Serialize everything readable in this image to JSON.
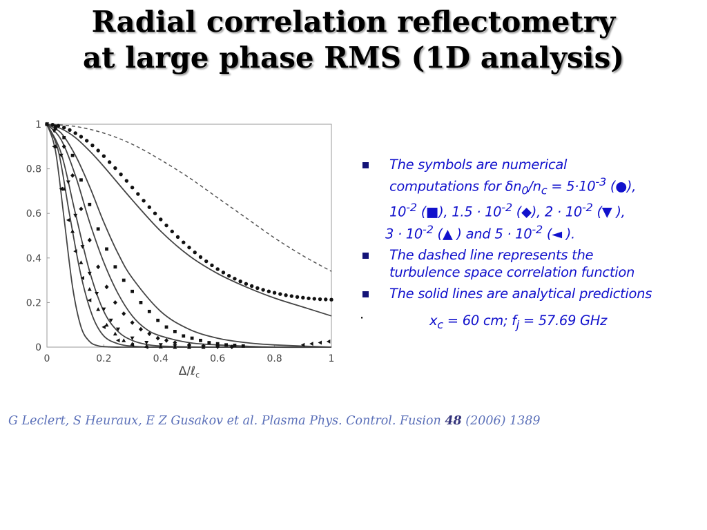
{
  "title": {
    "line1": "Radial correlation reflectometry",
    "line2": "at large phase RMS (1D analysis)"
  },
  "bullets": {
    "b1": {
      "l1": "The symbols are numerical",
      "l2a": "computations for ",
      "delta": "δ",
      "n0": "n",
      "sub0": "0",
      "slash": "/n",
      "subc": "c",
      "eq": " = 5·10",
      "exp3": "-3",
      "s1": " (●),",
      "l3a": "10",
      "e2a": "-2",
      "s2": " (■), 1.5 · 10",
      "e2b": "-2",
      "s3": " (◆), 2 · 10",
      "e2c": "-2",
      "s4": " (▼ ),",
      "l4a": "3 · 10",
      "e2d": "-2",
      "s5": " (▲ ) and 5 · 10",
      "e2e": "-2",
      "s6": " (◄ )."
    },
    "b2": {
      "l1": "The dashed line represents the",
      "l2": "turbulence space correlation function"
    },
    "b3": {
      "l1": "The solid lines are analytical predictions"
    },
    "dot": "·",
    "formula": {
      "x": "x",
      "xsub": "c",
      "mid": " = 60 cm; f",
      "fsub": "j",
      "end": " = 57.69 GHz"
    }
  },
  "citation": {
    "pre": "G Leclert, S Heuraux, E Z Gusakov et al. Plasma Phys. Control. Fusion ",
    "vol": "48",
    "post": " (2006) 1389"
  },
  "chart_data": {
    "type": "line",
    "xlabel": "Δ/ℓc",
    "xlabel_main": "Δ/ℓ",
    "xlabel_sub": "c",
    "xlim": [
      0,
      1
    ],
    "ylim": [
      0,
      1
    ],
    "x_ticks": [
      "0",
      "0.2",
      "0.4",
      "0.6",
      "0.8",
      "1"
    ],
    "y_ticks": [
      "0",
      "0.2",
      "0.4",
      "0.6",
      "0.8",
      "1"
    ],
    "colors": {
      "solid": "#444444",
      "dashed": "#555555",
      "markers": "#111111"
    },
    "dashed_line": {
      "x": [
        0,
        0.1,
        0.2,
        0.3,
        0.4,
        0.5,
        0.6,
        0.7,
        0.8,
        0.9,
        1.0
      ],
      "y": [
        1,
        0.99,
        0.96,
        0.91,
        0.84,
        0.76,
        0.67,
        0.58,
        0.49,
        0.41,
        0.34
      ]
    },
    "solid_lines": [
      {
        "x": [
          0,
          0.05,
          0.1,
          0.15,
          0.2,
          0.3,
          0.4,
          0.5,
          0.6,
          0.7,
          0.8,
          0.9,
          1.0
        ],
        "y": [
          1,
          0.98,
          0.94,
          0.88,
          0.81,
          0.66,
          0.52,
          0.41,
          0.33,
          0.27,
          0.22,
          0.18,
          0.14
        ]
      },
      {
        "x": [
          0,
          0.05,
          0.1,
          0.15,
          0.2,
          0.25,
          0.3,
          0.4,
          0.5,
          0.6,
          0.7,
          0.8,
          1.0
        ],
        "y": [
          1,
          0.96,
          0.86,
          0.72,
          0.56,
          0.42,
          0.31,
          0.16,
          0.08,
          0.04,
          0.02,
          0.01,
          0
        ]
      },
      {
        "x": [
          0,
          0.05,
          0.1,
          0.15,
          0.2,
          0.25,
          0.3,
          0.35,
          0.4,
          0.5,
          0.6,
          0.8,
          1.0
        ],
        "y": [
          1,
          0.93,
          0.77,
          0.56,
          0.38,
          0.24,
          0.14,
          0.08,
          0.05,
          0.02,
          0.01,
          0,
          0
        ]
      },
      {
        "x": [
          0,
          0.05,
          0.1,
          0.15,
          0.2,
          0.25,
          0.3,
          0.35,
          0.4,
          0.5,
          0.6,
          1.0
        ],
        "y": [
          1,
          0.87,
          0.6,
          0.34,
          0.16,
          0.07,
          0.03,
          0.012,
          0.005,
          0.001,
          0,
          0
        ]
      },
      {
        "x": [
          0,
          0.04,
          0.08,
          0.12,
          0.16,
          0.2,
          0.25,
          0.3,
          0.35,
          0.4,
          1.0
        ],
        "y": [
          1,
          0.88,
          0.59,
          0.32,
          0.14,
          0.05,
          0.015,
          0.004,
          0.001,
          0,
          0
        ]
      },
      {
        "x": [
          0,
          0.03,
          0.06,
          0.09,
          0.12,
          0.15,
          0.18,
          0.22,
          0.26,
          0.3,
          1.0
        ],
        "y": [
          1,
          0.88,
          0.58,
          0.27,
          0.09,
          0.025,
          0.006,
          0.001,
          0,
          0,
          0
        ]
      }
    ],
    "series": [
      {
        "marker": "circle",
        "x": [
          0,
          0.02,
          0.04,
          0.06,
          0.08,
          0.1,
          0.12,
          0.14,
          0.16,
          0.18,
          0.2,
          0.22,
          0.24,
          0.26,
          0.28,
          0.3,
          0.32,
          0.34,
          0.36,
          0.38,
          0.4,
          0.42,
          0.44,
          0.46,
          0.48,
          0.5,
          0.52,
          0.54,
          0.56,
          0.58,
          0.6,
          0.62,
          0.64,
          0.66,
          0.68,
          0.7,
          0.72,
          0.74,
          0.76,
          0.78,
          0.8,
          0.82,
          0.84,
          0.86,
          0.88,
          0.9,
          0.92,
          0.94,
          0.96,
          0.98,
          1.0
        ],
        "y": [
          1,
          0.998,
          0.993,
          0.985,
          0.974,
          0.96,
          0.944,
          0.926,
          0.905,
          0.882,
          0.857,
          0.83,
          0.803,
          0.775,
          0.746,
          0.716,
          0.687,
          0.657,
          0.628,
          0.6,
          0.573,
          0.546,
          0.519,
          0.494,
          0.47,
          0.447,
          0.425,
          0.404,
          0.385,
          0.367,
          0.35,
          0.335,
          0.32,
          0.307,
          0.295,
          0.284,
          0.274,
          0.265,
          0.257,
          0.25,
          0.244,
          0.238,
          0.233,
          0.229,
          0.225,
          0.222,
          0.219,
          0.217,
          0.215,
          0.214,
          0.213
        ]
      },
      {
        "marker": "square",
        "x": [
          0,
          0.03,
          0.06,
          0.09,
          0.12,
          0.15,
          0.18,
          0.21,
          0.24,
          0.27,
          0.3,
          0.33,
          0.36,
          0.39,
          0.42,
          0.45,
          0.48,
          0.51,
          0.54,
          0.57,
          0.6,
          0.63,
          0.66,
          0.69
        ],
        "y": [
          1,
          0.99,
          0.94,
          0.86,
          0.75,
          0.64,
          0.53,
          0.44,
          0.36,
          0.3,
          0.25,
          0.2,
          0.16,
          0.12,
          0.09,
          0.07,
          0.05,
          0.04,
          0.03,
          0.02,
          0.015,
          0.01,
          0.008,
          0.005
        ]
      },
      {
        "marker": "diamond",
        "x": [
          0,
          0.03,
          0.06,
          0.09,
          0.12,
          0.15,
          0.18,
          0.21,
          0.24,
          0.27,
          0.3,
          0.33,
          0.36,
          0.39,
          0.42,
          0.45,
          0.5,
          0.55,
          0.6,
          0.65
        ],
        "y": [
          1,
          0.98,
          0.9,
          0.77,
          0.62,
          0.48,
          0.36,
          0.27,
          0.2,
          0.15,
          0.11,
          0.08,
          0.06,
          0.04,
          0.03,
          0.02,
          0.01,
          0.005,
          0.002,
          0.001
        ]
      },
      {
        "marker": "triangle-down",
        "x": [
          0,
          0.025,
          0.05,
          0.075,
          0.1,
          0.125,
          0.15,
          0.175,
          0.2,
          0.225,
          0.25,
          0.3,
          0.35,
          0.4,
          0.45,
          0.5,
          0.55,
          0.6
        ],
        "y": [
          1,
          0.97,
          0.86,
          0.74,
          0.59,
          0.45,
          0.33,
          0.24,
          0.17,
          0.12,
          0.08,
          0.04,
          0.02,
          0.01,
          0.005,
          0.002,
          0.001,
          0
        ]
      },
      {
        "marker": "triangle-up",
        "x": [
          0,
          0.03,
          0.06,
          0.09,
          0.12,
          0.15,
          0.18,
          0.21,
          0.24,
          0.27,
          0.3,
          0.35,
          0.4,
          0.45,
          0.5,
          0.55
        ],
        "y": [
          1,
          0.9,
          0.71,
          0.52,
          0.38,
          0.26,
          0.17,
          0.1,
          0.06,
          0.03,
          0.015,
          0.005,
          0.002,
          0,
          0,
          0
        ]
      },
      {
        "marker": "triangle-left",
        "x": [
          0,
          0.025,
          0.05,
          0.075,
          0.1,
          0.125,
          0.15,
          0.2,
          0.25,
          0.3,
          0.35,
          0.9,
          0.93,
          0.96,
          0.99
        ],
        "y": [
          1,
          0.9,
          0.71,
          0.57,
          0.43,
          0.31,
          0.21,
          0.09,
          0.03,
          0.01,
          0,
          0.01,
          0.015,
          0.02,
          0.025
        ]
      }
    ]
  }
}
